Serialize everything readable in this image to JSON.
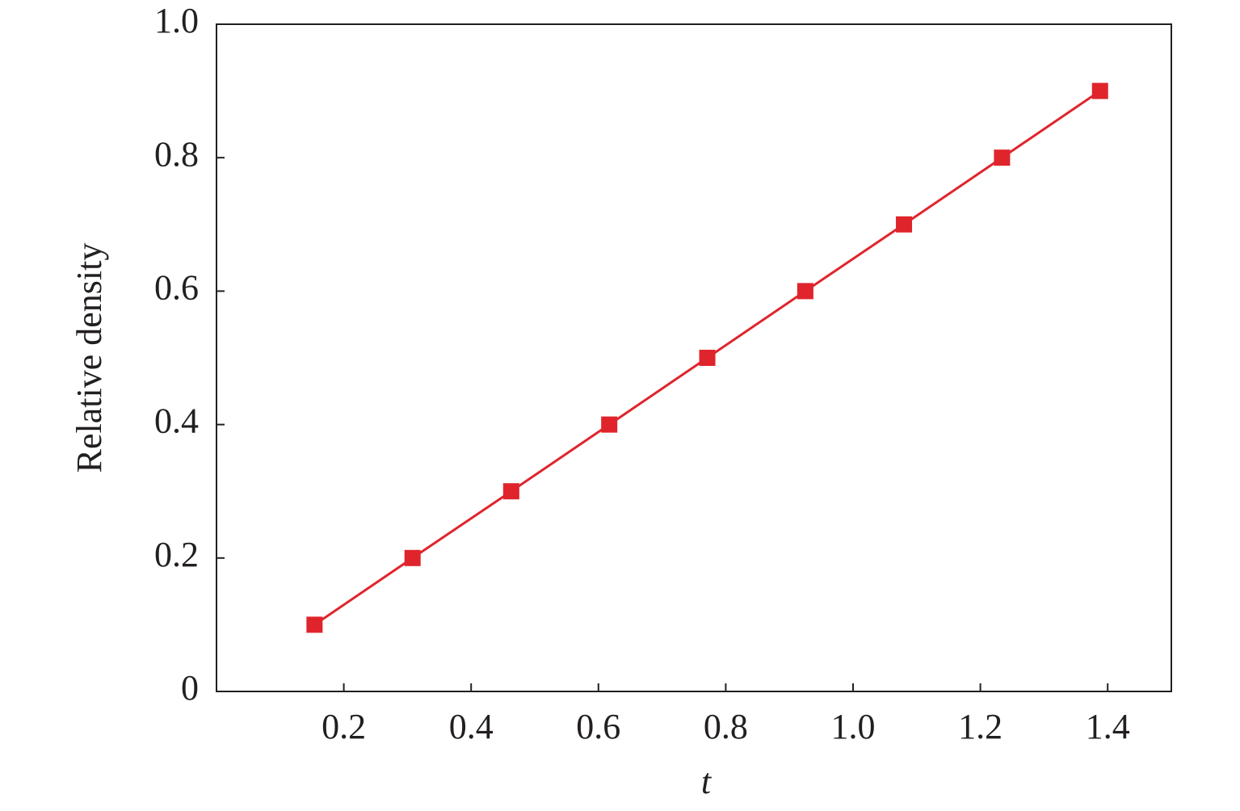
{
  "chart_data": {
    "type": "line",
    "x_label": "t",
    "y_label": "Relative density",
    "x": [
      0.154,
      0.308,
      0.463,
      0.617,
      0.771,
      0.925,
      1.08,
      1.234,
      1.388
    ],
    "series": [
      {
        "color": "#e0242c",
        "values": [
          0.1,
          0.2,
          0.3,
          0.4,
          0.5,
          0.6,
          0.7,
          0.8,
          0.9
        ]
      }
    ],
    "xlim": [
      0,
      1.5
    ],
    "ylim": [
      0,
      1
    ],
    "xticks": [
      0.2,
      0.4,
      0.6,
      0.8,
      {
        "value": 1,
        "label": "1.0"
      },
      1.2,
      1.4
    ],
    "yticks": [
      0,
      0.2,
      0.4,
      0.6,
      0.8,
      {
        "value": 1,
        "label": "1.0"
      }
    ],
    "grid": false
  }
}
